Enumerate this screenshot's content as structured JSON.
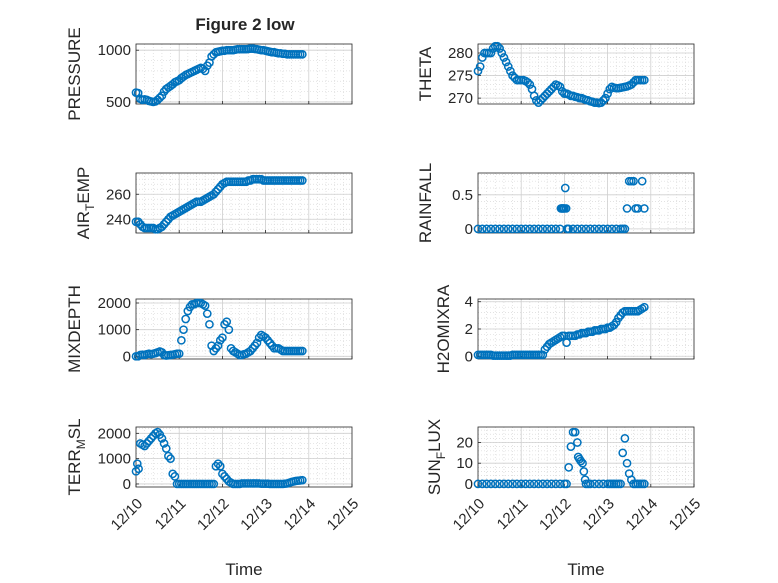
{
  "figure_title": "Figure 2 low",
  "marker_color": "#0072BD",
  "axes_color": "#262626",
  "grid_color": "#d9d9d9",
  "chart_data": [
    {
      "type": "scatter",
      "ylabel": "PRESSURE",
      "ylabel_sub": "",
      "ylabel_suffix": "",
      "xlim": [
        "12/10",
        "12/15"
      ],
      "ylim": [
        480,
        1060
      ],
      "yticks": [
        500,
        1000
      ],
      "xticklabels": [],
      "xlabel": "",
      "grid": true,
      "x": [
        0,
        0.05,
        0.1,
        0.15,
        0.2,
        0.25,
        0.3,
        0.35,
        0.4,
        0.45,
        0.5,
        0.55,
        0.6,
        0.65,
        0.7,
        0.75,
        0.8,
        0.85,
        0.9,
        0.95,
        1.0,
        1.05,
        1.1,
        1.15,
        1.2,
        1.25,
        1.3,
        1.35,
        1.4,
        1.45,
        1.5,
        1.55,
        1.6,
        1.65,
        1.7,
        1.75,
        1.8,
        1.85,
        1.9,
        1.95,
        2.0,
        2.05,
        2.1,
        2.15,
        2.2,
        2.25,
        2.3,
        2.35,
        2.4,
        2.45,
        2.5,
        2.55,
        2.6,
        2.65,
        2.7,
        2.75,
        2.8,
        2.85,
        2.9,
        2.95,
        3.0,
        3.05,
        3.1,
        3.15,
        3.2,
        3.25,
        3.3,
        3.35,
        3.4,
        3.45,
        3.5,
        3.55,
        3.6,
        3.65,
        3.7,
        3.75,
        3.8,
        3.85
      ],
      "y": [
        590,
        585,
        530,
        520,
        525,
        520,
        510,
        505,
        500,
        505,
        520,
        540,
        560,
        600,
        625,
        640,
        655,
        670,
        690,
        700,
        710,
        730,
        745,
        760,
        770,
        780,
        790,
        800,
        810,
        820,
        830,
        820,
        800,
        850,
        880,
        940,
        960,
        980,
        985,
        990,
        995,
        995,
        1000,
        1000,
        1000,
        1000,
        1005,
        1010,
        1010,
        1010,
        1010,
        1010,
        1012,
        1015,
        1015,
        1012,
        1010,
        1005,
        1000,
        1000,
        995,
        990,
        985,
        980,
        980,
        975,
        970,
        970,
        965,
        965,
        960,
        960,
        960,
        960,
        960,
        960,
        960,
        960
      ]
    },
    {
      "type": "scatter",
      "ylabel": "THETA",
      "ylabel_sub": "",
      "ylabel_suffix": "",
      "xlim": [
        "12/10",
        "12/15"
      ],
      "ylim": [
        268.7,
        282
      ],
      "yticks": [
        270,
        275,
        280
      ],
      "xticklabels": [],
      "xlabel": "",
      "grid": true,
      "x": [
        0,
        0.05,
        0.1,
        0.15,
        0.2,
        0.25,
        0.3,
        0.35,
        0.4,
        0.45,
        0.5,
        0.55,
        0.6,
        0.65,
        0.7,
        0.75,
        0.8,
        0.85,
        0.9,
        0.95,
        1.0,
        1.05,
        1.1,
        1.15,
        1.2,
        1.25,
        1.3,
        1.35,
        1.4,
        1.45,
        1.5,
        1.55,
        1.6,
        1.65,
        1.7,
        1.75,
        1.8,
        1.85,
        1.9,
        1.95,
        2.0,
        2.05,
        2.1,
        2.15,
        2.2,
        2.25,
        2.3,
        2.35,
        2.4,
        2.45,
        2.5,
        2.55,
        2.6,
        2.65,
        2.7,
        2.75,
        2.8,
        2.85,
        2.9,
        2.95,
        3.0,
        3.05,
        3.1,
        3.15,
        3.2,
        3.25,
        3.3,
        3.35,
        3.4,
        3.45,
        3.5,
        3.55,
        3.6,
        3.65,
        3.7,
        3.75,
        3.8,
        3.85
      ],
      "y": [
        276,
        277,
        279,
        280,
        280,
        280,
        280,
        281,
        281.5,
        281.5,
        281,
        280,
        279,
        278,
        277,
        276,
        275,
        274.5,
        274,
        274,
        274,
        274,
        273.8,
        273.5,
        273,
        272,
        270.5,
        269.5,
        269,
        269.5,
        270,
        270.5,
        271,
        271.5,
        272,
        272.5,
        273,
        272.8,
        272.5,
        271.5,
        271,
        271,
        270.8,
        270.5,
        270.5,
        270.3,
        270.2,
        270,
        270,
        269.8,
        269.6,
        269.5,
        269.3,
        269.2,
        269,
        269,
        268.9,
        269,
        269.5,
        270,
        271,
        272,
        272.5,
        272.3,
        272.2,
        272.2,
        272.3,
        272.4,
        272.5,
        272.6,
        272.8,
        273,
        273.5,
        274,
        274,
        274,
        274,
        274
      ]
    },
    {
      "type": "scatter",
      "ylabel": "AIR",
      "ylabel_sub": "T",
      "ylabel_suffix": "EMP",
      "xlim": [
        "12/10",
        "12/15"
      ],
      "ylim": [
        229,
        277
      ],
      "yticks": [
        240,
        260
      ],
      "xticklabels": [],
      "xlabel": "",
      "grid": true,
      "x": [
        0,
        0.05,
        0.1,
        0.15,
        0.2,
        0.25,
        0.3,
        0.35,
        0.4,
        0.45,
        0.5,
        0.55,
        0.6,
        0.65,
        0.7,
        0.75,
        0.8,
        0.85,
        0.9,
        0.95,
        1.0,
        1.05,
        1.1,
        1.15,
        1.2,
        1.25,
        1.3,
        1.35,
        1.4,
        1.45,
        1.5,
        1.55,
        1.6,
        1.65,
        1.7,
        1.75,
        1.8,
        1.85,
        1.9,
        1.95,
        2.0,
        2.05,
        2.1,
        2.15,
        2.2,
        2.25,
        2.3,
        2.35,
        2.4,
        2.45,
        2.5,
        2.55,
        2.6,
        2.65,
        2.7,
        2.75,
        2.8,
        2.85,
        2.9,
        2.95,
        3.0,
        3.05,
        3.1,
        3.15,
        3.2,
        3.25,
        3.3,
        3.35,
        3.4,
        3.45,
        3.5,
        3.55,
        3.6,
        3.65,
        3.7,
        3.75,
        3.8,
        3.85
      ],
      "y": [
        238,
        238,
        236,
        234,
        233,
        233,
        233,
        233,
        233,
        232,
        232,
        233,
        234,
        236,
        238,
        240,
        242,
        243,
        244,
        245,
        246,
        247,
        248,
        249,
        250,
        251,
        252,
        253,
        254,
        254,
        254,
        255,
        256,
        257,
        258,
        259,
        260,
        262,
        264,
        266,
        268,
        269,
        270,
        270,
        270,
        270,
        270,
        270,
        270,
        270,
        270,
        270,
        271,
        271,
        272,
        272,
        272,
        272,
        272,
        271,
        271,
        271,
        271,
        271,
        271,
        271,
        271,
        271,
        271,
        271,
        271,
        271,
        271,
        271,
        271,
        271,
        271,
        271
      ]
    },
    {
      "type": "scatter",
      "ylabel": "RAINFALL",
      "ylabel_sub": "",
      "ylabel_suffix": "",
      "xlim": [
        "12/10",
        "12/15"
      ],
      "ylim": [
        -0.06,
        0.82
      ],
      "yticks": [
        0,
        0.5
      ],
      "xticklabels": [],
      "xlabel": "",
      "grid": true,
      "x": [
        0,
        0.1,
        0.2,
        0.3,
        0.4,
        0.5,
        0.6,
        0.7,
        0.8,
        0.9,
        1.0,
        1.1,
        1.2,
        1.3,
        1.4,
        1.5,
        1.6,
        1.7,
        1.8,
        1.9,
        1.92,
        1.94,
        1.96,
        1.98,
        2.0,
        2.02,
        2.04,
        2.06,
        2.08,
        2.1,
        2.2,
        2.3,
        2.4,
        2.5,
        2.6,
        2.7,
        2.8,
        2.9,
        3.0,
        3.1,
        3.2,
        3.3,
        3.35,
        3.4,
        3.45,
        3.5,
        3.55,
        3.6,
        3.65,
        3.7,
        3.8,
        3.85
      ],
      "y": [
        0,
        0,
        0,
        0,
        0,
        0,
        0,
        0,
        0,
        0,
        0,
        0,
        0,
        0,
        0,
        0,
        0,
        0,
        0,
        0,
        0.3,
        0.3,
        0.3,
        0.3,
        0.3,
        0.6,
        0.3,
        0,
        0,
        0,
        0,
        0,
        0,
        0,
        0,
        0,
        0,
        0,
        0,
        0,
        0,
        0,
        0,
        0,
        0.3,
        0.7,
        0.7,
        0.7,
        0.3,
        0.3,
        0.7,
        0.3
      ]
    },
    {
      "type": "scatter",
      "ylabel": "MIXDEPTH",
      "ylabel_sub": "",
      "ylabel_suffix": "",
      "xlim": [
        "12/10",
        "12/15"
      ],
      "ylim": [
        -100,
        2150
      ],
      "yticks": [
        0,
        1000,
        2000
      ],
      "xticklabels": [],
      "xlabel": "",
      "grid": true,
      "x": [
        0,
        0.05,
        0.1,
        0.15,
        0.2,
        0.25,
        0.3,
        0.35,
        0.4,
        0.45,
        0.5,
        0.55,
        0.6,
        0.65,
        0.7,
        0.75,
        0.8,
        0.85,
        0.9,
        0.95,
        1.0,
        1.05,
        1.1,
        1.15,
        1.2,
        1.25,
        1.3,
        1.35,
        1.4,
        1.45,
        1.5,
        1.55,
        1.6,
        1.65,
        1.7,
        1.75,
        1.8,
        1.85,
        1.9,
        1.95,
        2.0,
        2.05,
        2.1,
        2.15,
        2.2,
        2.25,
        2.3,
        2.35,
        2.4,
        2.45,
        2.5,
        2.55,
        2.6,
        2.65,
        2.7,
        2.75,
        2.8,
        2.85,
        2.9,
        2.95,
        3.0,
        3.05,
        3.1,
        3.15,
        3.2,
        3.25,
        3.3,
        3.35,
        3.4,
        3.45,
        3.5,
        3.55,
        3.6,
        3.65,
        3.7,
        3.75,
        3.8,
        3.85
      ],
      "y": [
        0,
        0,
        50,
        60,
        50,
        80,
        100,
        80,
        100,
        120,
        150,
        180,
        150,
        50,
        30,
        40,
        50,
        60,
        80,
        100,
        100,
        600,
        1000,
        1400,
        1700,
        1850,
        1950,
        1950,
        2000,
        2000,
        2000,
        1950,
        1900,
        1600,
        1200,
        400,
        200,
        300,
        400,
        600,
        700,
        1200,
        1300,
        1000,
        300,
        200,
        150,
        100,
        50,
        50,
        80,
        100,
        150,
        200,
        300,
        400,
        500,
        700,
        800,
        750,
        700,
        600,
        500,
        400,
        300,
        300,
        300,
        250,
        200,
        200,
        200,
        200,
        200,
        200,
        200,
        200,
        200,
        200
      ]
    },
    {
      "type": "scatter",
      "ylabel": "H2OMIXRA",
      "ylabel_sub": "",
      "ylabel_suffix": "",
      "xlim": [
        "12/10",
        "12/15"
      ],
      "ylim": [
        -0.2,
        4.2
      ],
      "yticks": [
        0,
        2,
        4
      ],
      "xticklabels": [],
      "xlabel": "",
      "grid": true,
      "x": [
        0,
        0.05,
        0.1,
        0.15,
        0.2,
        0.25,
        0.3,
        0.35,
        0.4,
        0.45,
        0.5,
        0.55,
        0.6,
        0.65,
        0.7,
        0.75,
        0.8,
        0.85,
        0.9,
        0.95,
        1.0,
        1.05,
        1.1,
        1.15,
        1.2,
        1.25,
        1.3,
        1.35,
        1.4,
        1.45,
        1.5,
        1.55,
        1.6,
        1.65,
        1.7,
        1.75,
        1.8,
        1.85,
        1.9,
        1.95,
        2.0,
        2.05,
        2.1,
        2.15,
        2.2,
        2.25,
        2.3,
        2.35,
        2.4,
        2.45,
        2.5,
        2.55,
        2.6,
        2.65,
        2.7,
        2.75,
        2.8,
        2.85,
        2.9,
        2.95,
        3.0,
        3.05,
        3.1,
        3.15,
        3.2,
        3.25,
        3.3,
        3.35,
        3.4,
        3.45,
        3.5,
        3.55,
        3.6,
        3.65,
        3.7,
        3.75,
        3.8,
        3.85
      ],
      "y": [
        0.1,
        0.1,
        0.1,
        0.1,
        0.1,
        0.1,
        0.1,
        0.05,
        0.05,
        0.05,
        0.05,
        0.05,
        0.05,
        0.05,
        0.05,
        0.05,
        0.1,
        0.1,
        0.1,
        0.1,
        0.1,
        0.1,
        0.1,
        0.1,
        0.1,
        0.1,
        0.1,
        0.1,
        0.1,
        0.1,
        0.1,
        0.5,
        0.7,
        0.9,
        1.0,
        1.1,
        1.2,
        1.3,
        1.4,
        1.5,
        1.5,
        1.0,
        1.5,
        1.5,
        1.5,
        1.5,
        1.6,
        1.6,
        1.7,
        1.7,
        1.7,
        1.8,
        1.8,
        1.8,
        1.9,
        1.9,
        1.9,
        2.0,
        2.0,
        2.0,
        2.1,
        2.1,
        2.2,
        2.3,
        2.5,
        2.8,
        3.0,
        3.2,
        3.3,
        3.3,
        3.3,
        3.3,
        3.3,
        3.3,
        3.3,
        3.4,
        3.5,
        3.6
      ]
    },
    {
      "type": "scatter",
      "ylabel": "TERR",
      "ylabel_sub": "M",
      "ylabel_suffix": "SL",
      "xlim": [
        "12/10",
        "12/15"
      ],
      "ylim": [
        -120,
        2250
      ],
      "yticks": [
        0,
        1000,
        2000
      ],
      "xticklabels": [
        "12/10",
        "12/11",
        "12/12",
        "12/13",
        "12/14",
        "12/15"
      ],
      "xlabel": "Time",
      "grid": true,
      "x": [
        0,
        0.03,
        0.06,
        0.1,
        0.15,
        0.2,
        0.25,
        0.3,
        0.35,
        0.4,
        0.45,
        0.5,
        0.55,
        0.6,
        0.65,
        0.7,
        0.75,
        0.8,
        0.85,
        0.9,
        0.95,
        1.0,
        1.05,
        1.1,
        1.15,
        1.2,
        1.25,
        1.3,
        1.35,
        1.4,
        1.45,
        1.5,
        1.55,
        1.6,
        1.65,
        1.7,
        1.75,
        1.8,
        1.85,
        1.9,
        1.95,
        2.0,
        2.05,
        2.1,
        2.15,
        2.2,
        2.25,
        2.3,
        2.35,
        2.4,
        2.45,
        2.5,
        2.55,
        2.6,
        2.65,
        2.7,
        2.75,
        2.8,
        2.85,
        2.9,
        2.95,
        3.0,
        3.05,
        3.1,
        3.15,
        3.2,
        3.25,
        3.3,
        3.35,
        3.4,
        3.45,
        3.5,
        3.55,
        3.6,
        3.65,
        3.7,
        3.75,
        3.8,
        3.85
      ],
      "y": [
        500,
        800,
        600,
        1600,
        1550,
        1500,
        1600,
        1700,
        1800,
        1900,
        2000,
        2050,
        1950,
        1800,
        1600,
        1400,
        1100,
        1000,
        400,
        300,
        0,
        0,
        0,
        0,
        0,
        0,
        0,
        0,
        0,
        0,
        0,
        0,
        0,
        0,
        0,
        0,
        0,
        0,
        700,
        800,
        700,
        400,
        300,
        200,
        100,
        50,
        0,
        0,
        0,
        0,
        20,
        20,
        20,
        20,
        20,
        20,
        20,
        20,
        20,
        10,
        10,
        10,
        10,
        0,
        0,
        0,
        0,
        0,
        0,
        0,
        10,
        20,
        50,
        80,
        100,
        120,
        130,
        140,
        150
      ]
    },
    {
      "type": "scatter",
      "ylabel": "SUN",
      "ylabel_sub": "F",
      "ylabel_suffix": "LUX",
      "xlim": [
        "12/10",
        "12/15"
      ],
      "ylim": [
        -1.5,
        27.5
      ],
      "yticks": [
        0,
        10,
        20
      ],
      "xticklabels": [
        "12/10",
        "12/11",
        "12/12",
        "12/13",
        "12/14",
        "12/15"
      ],
      "xlabel": "Time",
      "grid": true,
      "x": [
        0,
        0.1,
        0.2,
        0.3,
        0.4,
        0.5,
        0.6,
        0.7,
        0.8,
        0.9,
        1.0,
        1.1,
        1.2,
        1.3,
        1.4,
        1.5,
        1.6,
        1.7,
        1.8,
        1.9,
        2.0,
        2.05,
        2.1,
        2.15,
        2.2,
        2.25,
        2.3,
        2.32,
        2.35,
        2.38,
        2.42,
        2.45,
        2.48,
        2.5,
        2.55,
        2.6,
        2.7,
        2.8,
        2.9,
        3.0,
        3.05,
        3.1,
        3.15,
        3.2,
        3.25,
        3.3,
        3.35,
        3.4,
        3.45,
        3.5,
        3.55,
        3.6,
        3.65,
        3.7,
        3.75,
        3.8,
        3.85
      ],
      "y": [
        0,
        0,
        0,
        0,
        0,
        0,
        0,
        0,
        0,
        0,
        0,
        0,
        0,
        0,
        0,
        0,
        0,
        0,
        0,
        0,
        0,
        0,
        8,
        18,
        25,
        25,
        20,
        13,
        12,
        11,
        10,
        6,
        2,
        0,
        0,
        0,
        0,
        0,
        0,
        0,
        0,
        0,
        0,
        0,
        0,
        0,
        15,
        22,
        10,
        5,
        2,
        0,
        0,
        0,
        0,
        0,
        0
      ]
    }
  ]
}
